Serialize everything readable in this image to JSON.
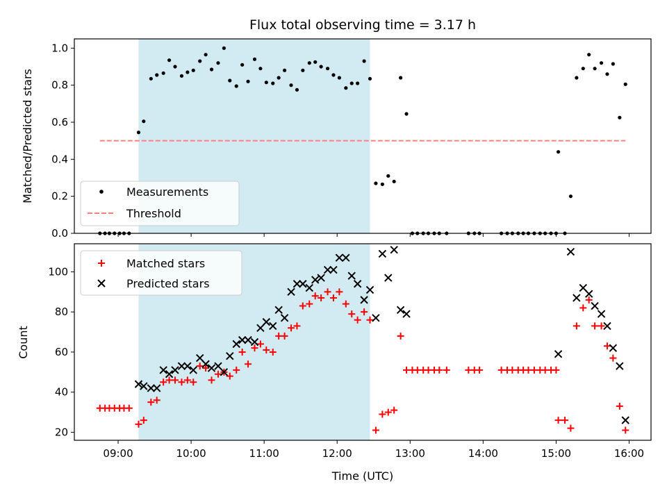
{
  "chart_data": {
    "title": "Flux total observing time = 3.17 h",
    "xlabel": "Time (UTC)",
    "x_unit": "hours UTC",
    "xlim": [
      8.4,
      16.3
    ],
    "xticks": [
      9,
      10,
      11,
      12,
      13,
      14,
      15,
      16
    ],
    "xtick_labels": [
      "09:00",
      "10:00",
      "11:00",
      "12:00",
      "13:00",
      "14:00",
      "15:00",
      "16:00"
    ],
    "shaded_interval": {
      "x": [
        9.28,
        12.45
      ],
      "color": "#add8e6"
    },
    "panels": [
      {
        "type": "scatter",
        "ylabel": "Matched/Predicted stars",
        "ylim": [
          0,
          1.05
        ],
        "yticks": [
          0.0,
          0.2,
          0.4,
          0.6,
          0.8,
          1.0
        ],
        "ytick_labels": [
          "0.0",
          "0.2",
          "0.4",
          "0.6",
          "0.8",
          "1.0"
        ],
        "legend": {
          "location": "lower-left"
        },
        "series": [
          {
            "name": "Measurements",
            "marker": "dot",
            "color": "#000000",
            "points": [
              [
                8.75,
                0
              ],
              [
                8.82,
                0
              ],
              [
                8.88,
                0
              ],
              [
                8.95,
                0
              ],
              [
                9.02,
                0
              ],
              [
                9.08,
                0
              ],
              [
                9.15,
                0
              ],
              [
                9.28,
                0.545
              ],
              [
                9.35,
                0.605
              ],
              [
                9.45,
                0.835
              ],
              [
                9.53,
                0.855
              ],
              [
                9.62,
                0.865
              ],
              [
                9.7,
                0.935
              ],
              [
                9.78,
                0.9
              ],
              [
                9.87,
                0.85
              ],
              [
                9.95,
                0.87
              ],
              [
                10.03,
                0.88
              ],
              [
                10.12,
                0.93
              ],
              [
                10.2,
                0.965
              ],
              [
                10.28,
                0.885
              ],
              [
                10.37,
                0.92
              ],
              [
                10.45,
                1.0
              ],
              [
                10.53,
                0.825
              ],
              [
                10.62,
                0.795
              ],
              [
                10.7,
                0.91
              ],
              [
                10.78,
                0.82
              ],
              [
                10.87,
                0.94
              ],
              [
                10.95,
                0.89
              ],
              [
                11.03,
                0.815
              ],
              [
                11.12,
                0.81
              ],
              [
                11.2,
                0.84
              ],
              [
                11.28,
                0.88
              ],
              [
                11.37,
                0.8
              ],
              [
                11.45,
                0.775
              ],
              [
                11.53,
                0.88
              ],
              [
                11.62,
                0.92
              ],
              [
                11.7,
                0.925
              ],
              [
                11.78,
                0.9
              ],
              [
                11.87,
                0.89
              ],
              [
                11.95,
                0.855
              ],
              [
                12.03,
                0.84
              ],
              [
                12.12,
                0.785
              ],
              [
                12.2,
                0.81
              ],
              [
                12.28,
                0.81
              ],
              [
                12.37,
                0.93
              ],
              [
                12.45,
                0.835
              ],
              [
                12.53,
                0.27
              ],
              [
                12.62,
                0.265
              ],
              [
                12.7,
                0.31
              ],
              [
                12.78,
                0.28
              ],
              [
                12.87,
                0.84
              ],
              [
                12.95,
                0.645
              ],
              [
                13.03,
                0
              ],
              [
                13.1,
                0
              ],
              [
                13.18,
                0
              ],
              [
                13.25,
                0
              ],
              [
                13.33,
                0
              ],
              [
                13.4,
                0
              ],
              [
                13.5,
                0
              ],
              [
                13.8,
                0
              ],
              [
                13.88,
                0
              ],
              [
                13.95,
                0
              ],
              [
                14.25,
                0
              ],
              [
                14.33,
                0
              ],
              [
                14.4,
                0
              ],
              [
                14.48,
                0
              ],
              [
                14.55,
                0
              ],
              [
                14.62,
                0
              ],
              [
                14.7,
                0
              ],
              [
                14.78,
                0
              ],
              [
                14.85,
                0
              ],
              [
                14.93,
                0
              ],
              [
                15.0,
                0
              ],
              [
                15.03,
                0.44
              ],
              [
                15.12,
                0
              ],
              [
                15.2,
                0.2
              ],
              [
                15.28,
                0.84
              ],
              [
                15.37,
                0.89
              ],
              [
                15.45,
                0.965
              ],
              [
                15.53,
                0.89
              ],
              [
                15.62,
                0.92
              ],
              [
                15.7,
                0.86
              ],
              [
                15.78,
                0.915
              ],
              [
                15.87,
                0.625
              ],
              [
                15.95,
                0.805
              ]
            ]
          },
          {
            "name": "Threshold",
            "type": "line",
            "style": "dashed",
            "color": "#ff7f7f",
            "points": [
              [
                8.75,
                0.5
              ],
              [
                15.95,
                0.5
              ]
            ]
          }
        ]
      },
      {
        "type": "scatter",
        "ylabel": "Count",
        "ylim": [
          16,
          114
        ],
        "yticks": [
          20,
          40,
          60,
          80,
          100
        ],
        "ytick_labels": [
          "20",
          "40",
          "60",
          "80",
          "100"
        ],
        "legend": {
          "location": "upper-left"
        },
        "series": [
          {
            "name": "Matched stars",
            "marker": "plus",
            "color": "#ff0000",
            "points": [
              [
                8.75,
                32
              ],
              [
                8.82,
                32
              ],
              [
                8.88,
                32
              ],
              [
                8.95,
                32
              ],
              [
                9.02,
                32
              ],
              [
                9.08,
                32
              ],
              [
                9.15,
                32
              ],
              [
                9.28,
                24
              ],
              [
                9.35,
                26
              ],
              [
                9.45,
                35
              ],
              [
                9.53,
                36
              ],
              [
                9.62,
                45
              ],
              [
                9.7,
                46
              ],
              [
                9.78,
                46
              ],
              [
                9.87,
                45
              ],
              [
                9.95,
                46
              ],
              [
                10.03,
                45
              ],
              [
                10.12,
                53
              ],
              [
                10.2,
                52
              ],
              [
                10.28,
                46
              ],
              [
                10.37,
                49
              ],
              [
                10.45,
                50
              ],
              [
                10.53,
                48
              ],
              [
                10.62,
                51
              ],
              [
                10.7,
                60
              ],
              [
                10.78,
                54
              ],
              [
                10.87,
                62
              ],
              [
                10.95,
                64
              ],
              [
                11.03,
                61
              ],
              [
                11.12,
                60
              ],
              [
                11.2,
                68
              ],
              [
                11.28,
                68
              ],
              [
                11.37,
                72
              ],
              [
                11.45,
                73
              ],
              [
                11.53,
                83
              ],
              [
                11.62,
                84
              ],
              [
                11.7,
                88
              ],
              [
                11.78,
                87
              ],
              [
                11.87,
                90
              ],
              [
                11.95,
                87
              ],
              [
                12.03,
                90
              ],
              [
                12.12,
                84
              ],
              [
                12.2,
                79
              ],
              [
                12.28,
                76
              ],
              [
                12.37,
                80
              ],
              [
                12.45,
                76
              ],
              [
                12.53,
                21
              ],
              [
                12.62,
                29
              ],
              [
                12.7,
                30
              ],
              [
                12.78,
                31
              ],
              [
                12.87,
                68
              ],
              [
                12.95,
                51
              ],
              [
                13.03,
                51
              ],
              [
                13.1,
                51
              ],
              [
                13.18,
                51
              ],
              [
                13.25,
                51
              ],
              [
                13.33,
                51
              ],
              [
                13.4,
                51
              ],
              [
                13.5,
                51
              ],
              [
                13.8,
                51
              ],
              [
                13.88,
                51
              ],
              [
                13.95,
                51
              ],
              [
                14.25,
                51
              ],
              [
                14.33,
                51
              ],
              [
                14.4,
                51
              ],
              [
                14.48,
                51
              ],
              [
                14.55,
                51
              ],
              [
                14.62,
                51
              ],
              [
                14.7,
                51
              ],
              [
                14.78,
                51
              ],
              [
                14.85,
                51
              ],
              [
                14.93,
                51
              ],
              [
                15.0,
                51
              ],
              [
                15.03,
                26
              ],
              [
                15.12,
                26
              ],
              [
                15.2,
                22
              ],
              [
                15.28,
                73
              ],
              [
                15.37,
                82
              ],
              [
                15.45,
                86
              ],
              [
                15.53,
                73
              ],
              [
                15.62,
                73
              ],
              [
                15.7,
                63
              ],
              [
                15.78,
                57
              ],
              [
                15.87,
                33
              ],
              [
                15.95,
                21
              ]
            ]
          },
          {
            "name": "Predicted stars",
            "marker": "x",
            "color": "#000000",
            "points": [
              [
                9.28,
                44
              ],
              [
                9.35,
                43
              ],
              [
                9.45,
                42
              ],
              [
                9.53,
                42
              ],
              [
                9.62,
                51
              ],
              [
                9.7,
                49
              ],
              [
                9.78,
                51
              ],
              [
                9.87,
                53
              ],
              [
                9.95,
                53
              ],
              [
                10.03,
                51
              ],
              [
                10.12,
                57
              ],
              [
                10.2,
                54
              ],
              [
                10.28,
                52
              ],
              [
                10.37,
                53
              ],
              [
                10.45,
                50
              ],
              [
                10.53,
                58
              ],
              [
                10.62,
                64
              ],
              [
                10.7,
                66
              ],
              [
                10.78,
                66
              ],
              [
                10.87,
                65
              ],
              [
                10.95,
                72
              ],
              [
                11.03,
                75
              ],
              [
                11.12,
                73
              ],
              [
                11.2,
                81
              ],
              [
                11.28,
                77
              ],
              [
                11.37,
                90
              ],
              [
                11.45,
                94
              ],
              [
                11.53,
                94
              ],
              [
                11.62,
                92
              ],
              [
                11.7,
                96
              ],
              [
                11.78,
                97
              ],
              [
                11.87,
                101
              ],
              [
                11.95,
                101
              ],
              [
                12.03,
                107
              ],
              [
                12.12,
                107
              ],
              [
                12.2,
                98
              ],
              [
                12.28,
                94
              ],
              [
                12.37,
                86
              ],
              [
                12.45,
                91
              ],
              [
                12.53,
                77
              ],
              [
                12.62,
                109
              ],
              [
                12.7,
                97
              ],
              [
                12.78,
                111
              ],
              [
                12.87,
                81
              ],
              [
                12.95,
                79
              ],
              [
                15.03,
                59
              ],
              [
                15.2,
                110
              ],
              [
                15.28,
                87
              ],
              [
                15.37,
                92
              ],
              [
                15.45,
                89
              ],
              [
                15.53,
                83
              ],
              [
                15.62,
                79
              ],
              [
                15.7,
                73
              ],
              [
                15.78,
                62
              ],
              [
                15.87,
                53
              ],
              [
                15.95,
                26
              ]
            ]
          }
        ]
      }
    ]
  }
}
